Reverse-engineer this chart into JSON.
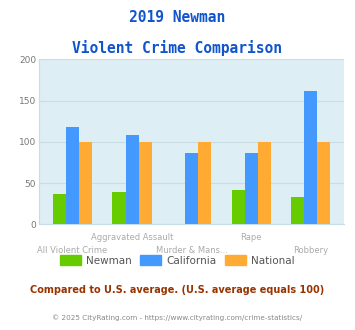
{
  "title_line1": "2019 Newman",
  "title_line2": "Violent Crime Comparison",
  "categories": [
    "All Violent Crime",
    "Aggravated Assault",
    "Murder & Mans...",
    "Rape",
    "Robbery"
  ],
  "newman": [
    37,
    39,
    0,
    42,
    33
  ],
  "california": [
    118,
    108,
    86,
    87,
    162
  ],
  "national": [
    100,
    100,
    100,
    100,
    100
  ],
  "newman_color": "#66cc00",
  "california_color": "#4499ff",
  "national_color": "#ffaa33",
  "ylim": [
    0,
    200
  ],
  "yticks": [
    0,
    50,
    100,
    150,
    200
  ],
  "bg_color": "#ddeef4",
  "plot_bg_color": "#ddeef4",
  "title_color": "#1155cc",
  "footer_text": "Compared to U.S. average. (U.S. average equals 100)",
  "copyright_text": "© 2025 CityRating.com - https://www.cityrating.com/crime-statistics/",
  "footer_color": "#993300",
  "copyright_color": "#888888",
  "bar_width": 0.22,
  "xlabel_color": "#aaaaaa",
  "grid_color": "#c8dde5",
  "spine_color": "#c8dde5"
}
